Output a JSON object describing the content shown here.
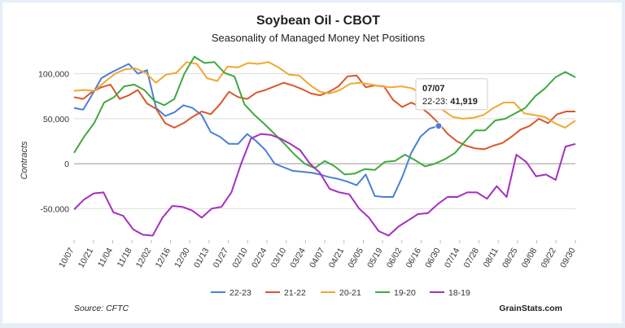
{
  "chart_data": {
    "type": "line",
    "title": "Soybean Oil - CBOT",
    "subtitle": "Seasonality of Managed Money Net Positions",
    "ylabel": "Contracts",
    "xlabel": "",
    "ylim": [
      -85000,
      125000
    ],
    "y_ticks": [
      -50000,
      0,
      50000,
      100000
    ],
    "y_tick_labels": [
      "-50,000",
      "0",
      "50,000",
      "100,000"
    ],
    "grid": true,
    "legend_position": "bottom",
    "x_tick_labels": [
      "10/07",
      "10/21",
      "11/04",
      "11/18",
      "12/02",
      "12/16",
      "12/30",
      "01/13",
      "01/27",
      "02/10",
      "02/24",
      "03/10",
      "03/24",
      "04/07",
      "04/21",
      "05/05",
      "05/19",
      "06/02",
      "06/16",
      "06/30",
      "07/14",
      "07/28",
      "08/11",
      "08/25",
      "09/08",
      "09/22",
      "09/30"
    ],
    "series": [
      {
        "name": "22-23",
        "color": "#4a7fd6",
        "values": [
          62000,
          60000,
          77000,
          95000,
          101000,
          106000,
          111000,
          100000,
          104000,
          62000,
          53000,
          57000,
          65000,
          62000,
          54000,
          35000,
          30000,
          22000,
          22000,
          33000,
          25000,
          15000,
          0,
          -4000,
          -8000,
          -9000,
          -10000,
          -12000,
          -15000,
          -17000,
          -20000,
          -24000,
          -12000,
          -36000,
          -37000,
          -37000,
          -15000,
          12000,
          30000,
          39000,
          41919
        ]
      },
      {
        "name": "21-22",
        "color": "#d9572b",
        "values": [
          74000,
          72000,
          80000,
          85000,
          88000,
          72000,
          76000,
          82000,
          67000,
          61000,
          45000,
          40000,
          45000,
          52000,
          58000,
          55000,
          66000,
          80000,
          74000,
          72000,
          79000,
          82000,
          86000,
          90000,
          87000,
          83000,
          78000,
          76000,
          80000,
          86000,
          97000,
          98000,
          85000,
          87000,
          86000,
          71000,
          63000,
          68000,
          63000,
          55000,
          45000,
          33000,
          25000,
          20000,
          17000,
          16000,
          20000,
          23000,
          30000,
          38000,
          42000,
          50000,
          45000,
          55000,
          58000,
          58000
        ]
      },
      {
        "name": "20-21",
        "color": "#f0a832",
        "values": [
          81000,
          82000,
          81000,
          91000,
          100000,
          105000,
          106000,
          101000,
          90000,
          99000,
          101000,
          113000,
          111000,
          95000,
          92000,
          108000,
          107000,
          112000,
          111000,
          113000,
          107000,
          99000,
          98000,
          88000,
          80000,
          78000,
          82000,
          89000,
          90000,
          88000,
          86000,
          85000,
          86000,
          84000,
          78000,
          70000,
          60000,
          52000,
          50000,
          51000,
          54000,
          62000,
          68000,
          68000,
          56000,
          54000,
          52000,
          45000,
          40000,
          48000
        ]
      },
      {
        "name": "19-20",
        "color": "#3faa3f",
        "values": [
          12000,
          30000,
          45000,
          68000,
          74000,
          86000,
          88000,
          82000,
          70000,
          65000,
          72000,
          100000,
          119000,
          112000,
          113000,
          101000,
          97000,
          66000,
          54000,
          44000,
          33000,
          22000,
          10000,
          0,
          -5000,
          3000,
          -3000,
          -12000,
          -11000,
          -6000,
          -7000,
          2000,
          3000,
          10000,
          4000,
          -3000,
          0,
          5000,
          12000,
          25000,
          37000,
          37000,
          48000,
          50000,
          56000,
          62000,
          75000,
          84000,
          96000,
          102000,
          96000
        ]
      },
      {
        "name": "18-19",
        "color": "#a52fbf",
        "values": [
          -51000,
          -40000,
          -33000,
          -32000,
          -54000,
          -58000,
          -73000,
          -79000,
          -80000,
          -60000,
          -47000,
          -48000,
          -52000,
          -60000,
          -50000,
          -48000,
          -32000,
          0,
          28000,
          33000,
          32000,
          28000,
          22000,
          15000,
          0,
          -10000,
          -28000,
          -32000,
          -34000,
          -50000,
          -60000,
          -75000,
          -80000,
          -70000,
          -63000,
          -56000,
          -55000,
          -45000,
          -37000,
          -37000,
          -32000,
          -32000,
          -39000,
          -25000,
          -37000,
          10000,
          2000,
          -14000,
          -12000,
          -18000,
          19000,
          22000
        ]
      }
    ],
    "tooltip": {
      "date": "07/07",
      "series": "22-23",
      "label": "22-23: ",
      "value": "41,919"
    }
  },
  "source_text": "Source: CFTC",
  "brand_text": "GrainStats.com"
}
